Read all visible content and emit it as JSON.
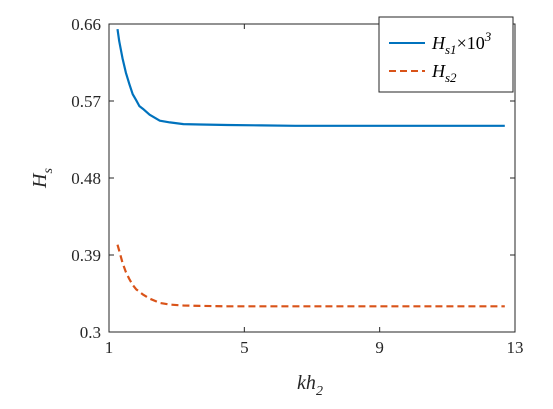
{
  "chart_data": {
    "type": "line",
    "xlabel": {
      "main": "kh",
      "sub": "2"
    },
    "ylabel": {
      "main": "H",
      "sub": "s"
    },
    "xlim": [
      1,
      13
    ],
    "ylim": [
      0.3,
      0.66
    ],
    "xticks": [
      1,
      5,
      9,
      13
    ],
    "yticks": [
      0.3,
      0.39,
      0.48,
      0.57,
      0.66
    ],
    "xtick_labels": [
      "1",
      "5",
      "9",
      "13"
    ],
    "ytick_labels": [
      "0.3",
      "0.39",
      "0.48",
      "0.57",
      "0.66"
    ],
    "grid": false,
    "legend_position": "top-right",
    "series": [
      {
        "legend": {
          "main": "H",
          "sub": "s1",
          "tail": "×10",
          "sup": "3"
        },
        "color": "#0072BD",
        "style": "solid",
        "x": [
          1.25,
          1.3,
          1.4,
          1.5,
          1.6,
          1.7,
          1.8,
          1.9,
          2.0,
          2.2,
          2.5,
          2.8,
          3.2,
          3.7,
          4.5,
          5.5,
          6.5,
          8.0,
          10.0,
          12.0,
          12.7
        ],
        "y": [
          0.654,
          0.64,
          0.62,
          0.603,
          0.59,
          0.578,
          0.571,
          0.564,
          0.561,
          0.554,
          0.547,
          0.545,
          0.543,
          0.5425,
          0.542,
          0.5415,
          0.541,
          0.541,
          0.541,
          0.541,
          0.541
        ]
      },
      {
        "legend": {
          "main": "H",
          "sub": "s2",
          "tail": "",
          "sup": ""
        },
        "color": "#D95319",
        "style": "dashed",
        "x": [
          1.25,
          1.3,
          1.4,
          1.5,
          1.6,
          1.7,
          1.8,
          2.0,
          2.2,
          2.5,
          2.8,
          3.2,
          3.7,
          4.5,
          5.5,
          7.0,
          9.0,
          11.0,
          12.7
        ],
        "y": [
          0.402,
          0.395,
          0.381,
          0.37,
          0.362,
          0.355,
          0.35,
          0.344,
          0.339,
          0.334,
          0.332,
          0.331,
          0.3305,
          0.33,
          0.33,
          0.33,
          0.33,
          0.33,
          0.33
        ]
      }
    ]
  }
}
